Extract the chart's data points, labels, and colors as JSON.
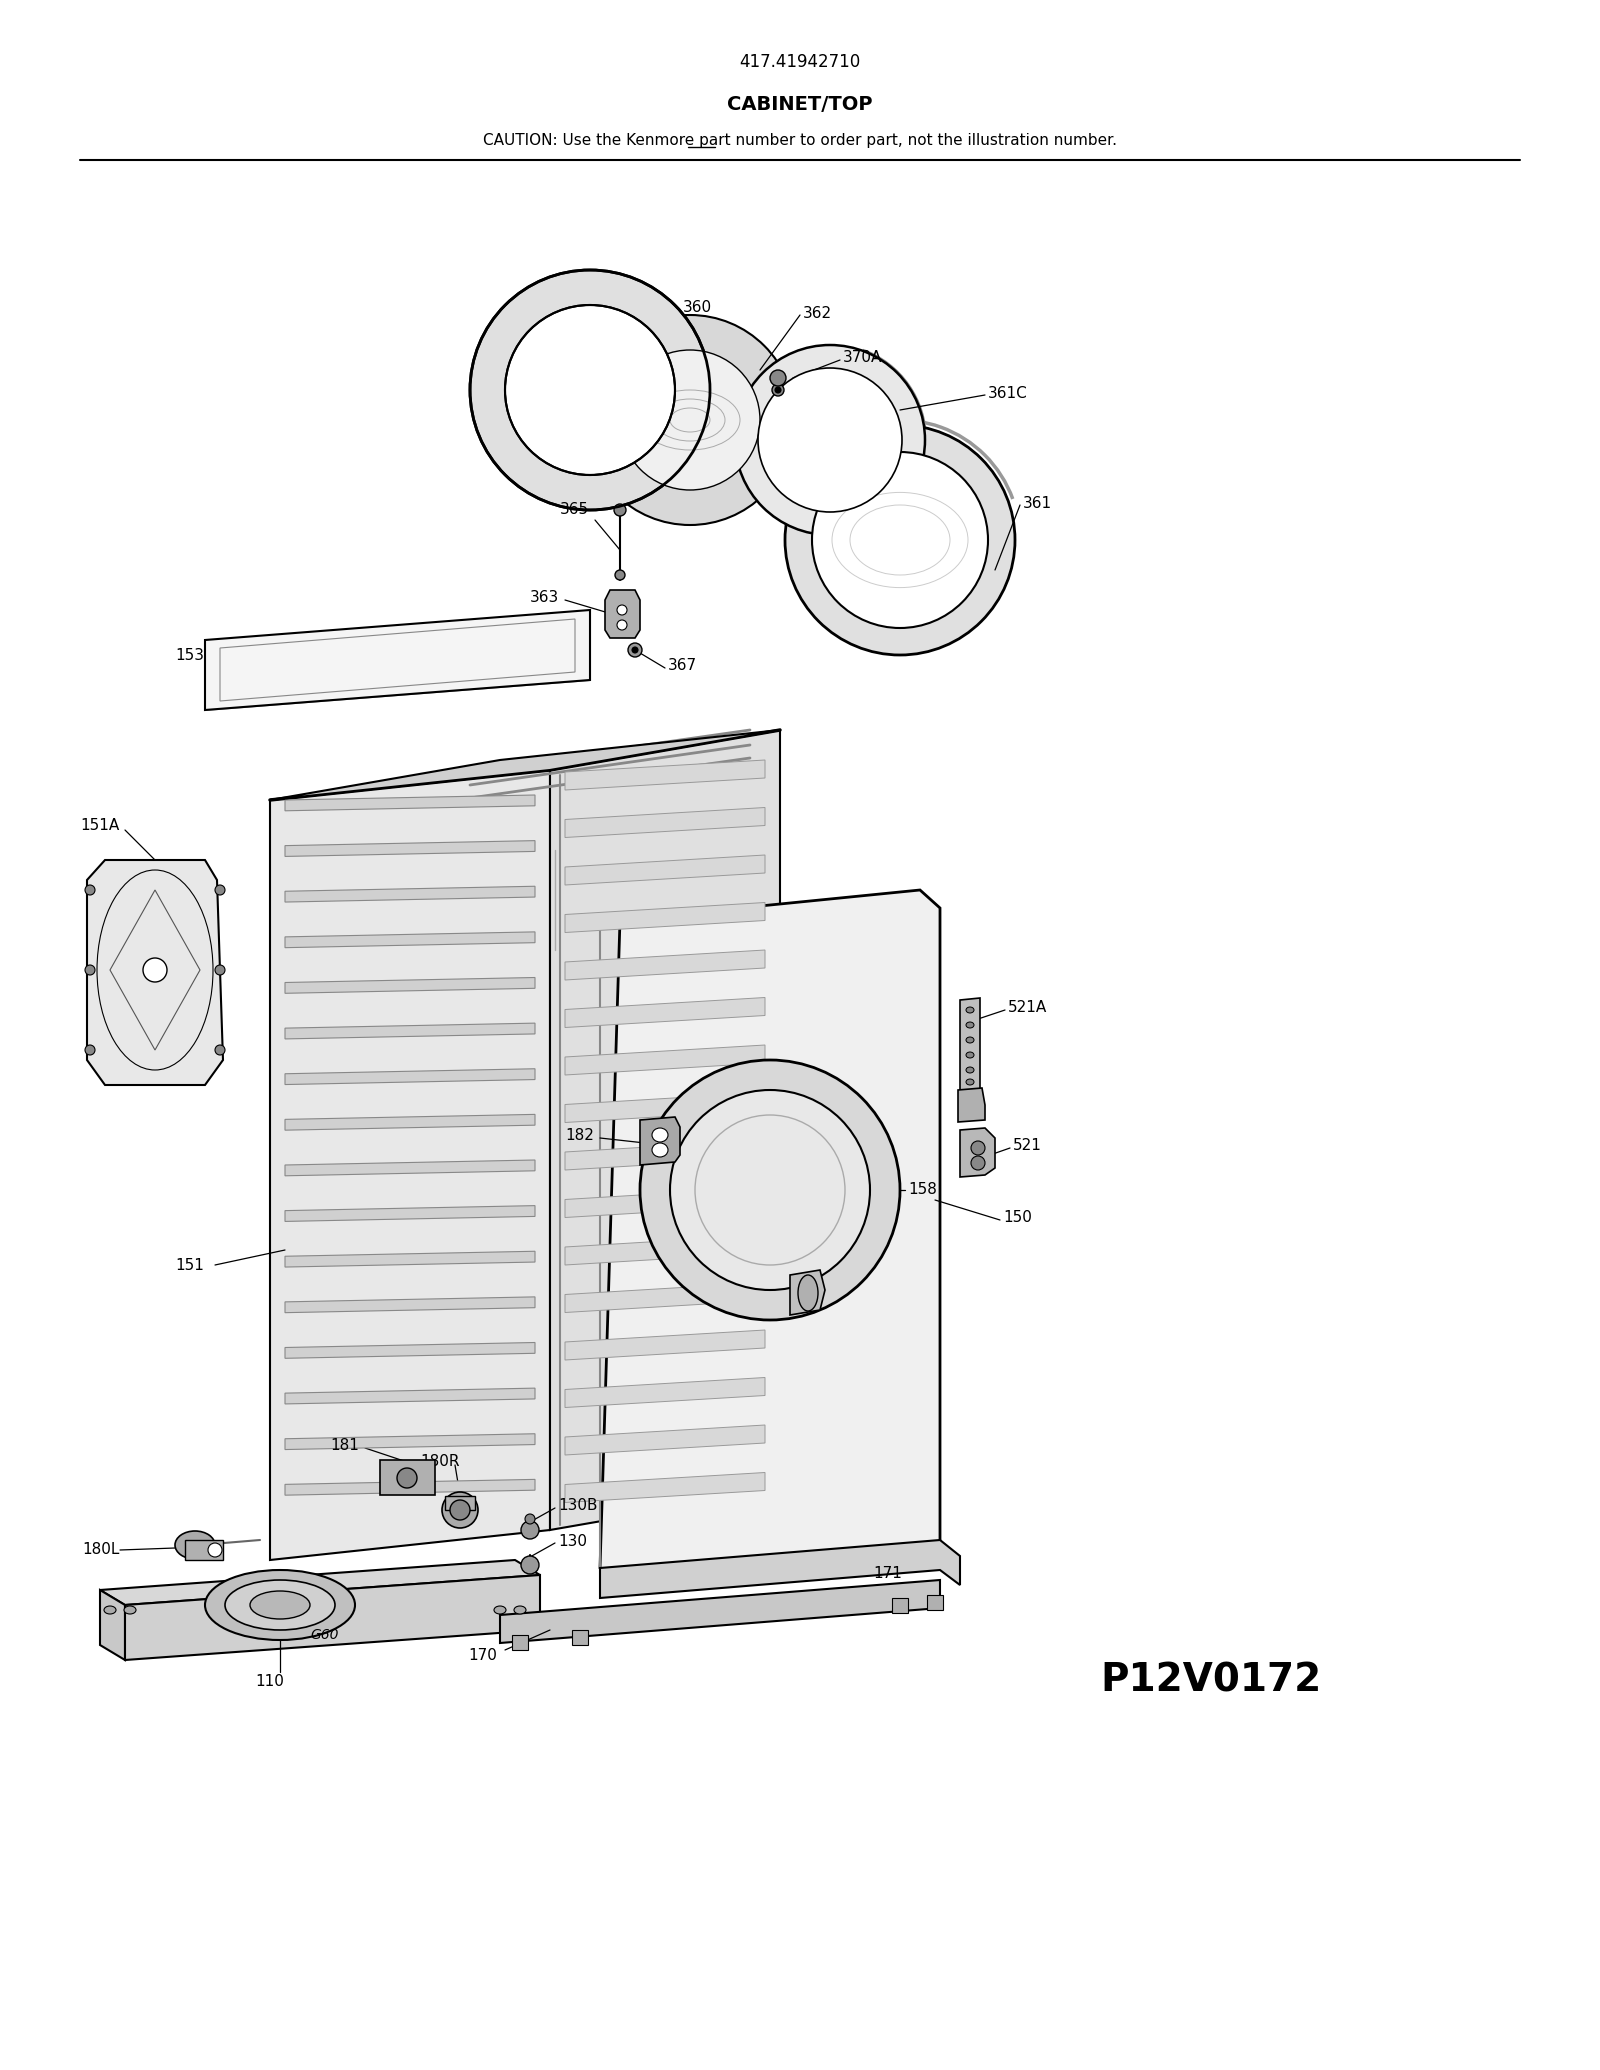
{
  "model_number": "417.41942710",
  "section_title": "CABINET/TOP",
  "caution_text": "CAUTION: Use the Kenmore part number to order part, not the illustration number.",
  "part_label_id": "P12V0172",
  "background_color": "#ffffff",
  "line_color": "#000000",
  "figsize": [
    16.0,
    20.7
  ],
  "dpi": 100
}
